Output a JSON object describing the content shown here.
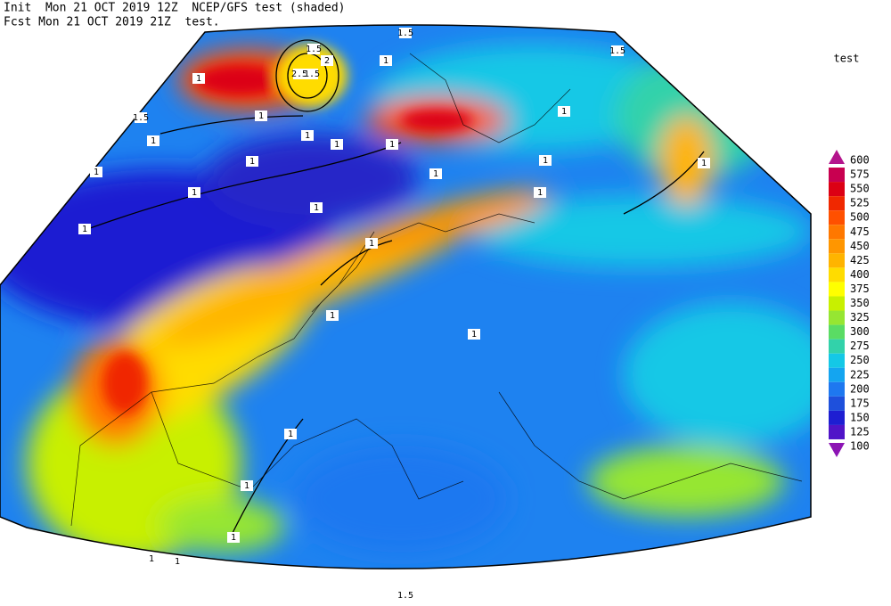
{
  "header": {
    "line1": "Init  Mon 21 OCT 2019 12Z  NCEP/GFS test (shaded)",
    "line2": "Fcst Mon 21 OCT 2019 21Z  test."
  },
  "legend": {
    "title": "test",
    "levels": [
      {
        "value": 600,
        "color": "#b4148c"
      },
      {
        "value": 575,
        "color": "#c80050"
      },
      {
        "value": 550,
        "color": "#dc0014"
      },
      {
        "value": 525,
        "color": "#f02800"
      },
      {
        "value": 500,
        "color": "#ff5000"
      },
      {
        "value": 475,
        "color": "#ff7800"
      },
      {
        "value": 450,
        "color": "#ff9600"
      },
      {
        "value": 425,
        "color": "#ffb400"
      },
      {
        "value": 400,
        "color": "#ffdc00"
      },
      {
        "value": 375,
        "color": "#ffff00"
      },
      {
        "value": 350,
        "color": "#c8f000"
      },
      {
        "value": 325,
        "color": "#96e632"
      },
      {
        "value": 300,
        "color": "#5adc64"
      },
      {
        "value": 275,
        "color": "#32d2aa"
      },
      {
        "value": 250,
        "color": "#14c8e6"
      },
      {
        "value": 225,
        "color": "#14a5f0"
      },
      {
        "value": 200,
        "color": "#1e78f0"
      },
      {
        "value": 175,
        "color": "#1e50dc"
      },
      {
        "value": 150,
        "color": "#1e1ed2"
      },
      {
        "value": 125,
        "color": "#5014c8"
      },
      {
        "value": 100,
        "color": "#8c14b4"
      }
    ]
  },
  "contour_labels": [
    "1.5",
    "1.5",
    "2",
    "2.5",
    "1.5",
    "1.5",
    "1",
    "1",
    "1",
    "1.5",
    "1",
    "1",
    "1",
    "1",
    "1",
    "1",
    "1",
    "1",
    "1",
    "1",
    "1",
    "1",
    "1",
    "1",
    "1",
    "1",
    "1",
    "1",
    "1",
    "1",
    "1",
    "1",
    "1.5"
  ]
}
